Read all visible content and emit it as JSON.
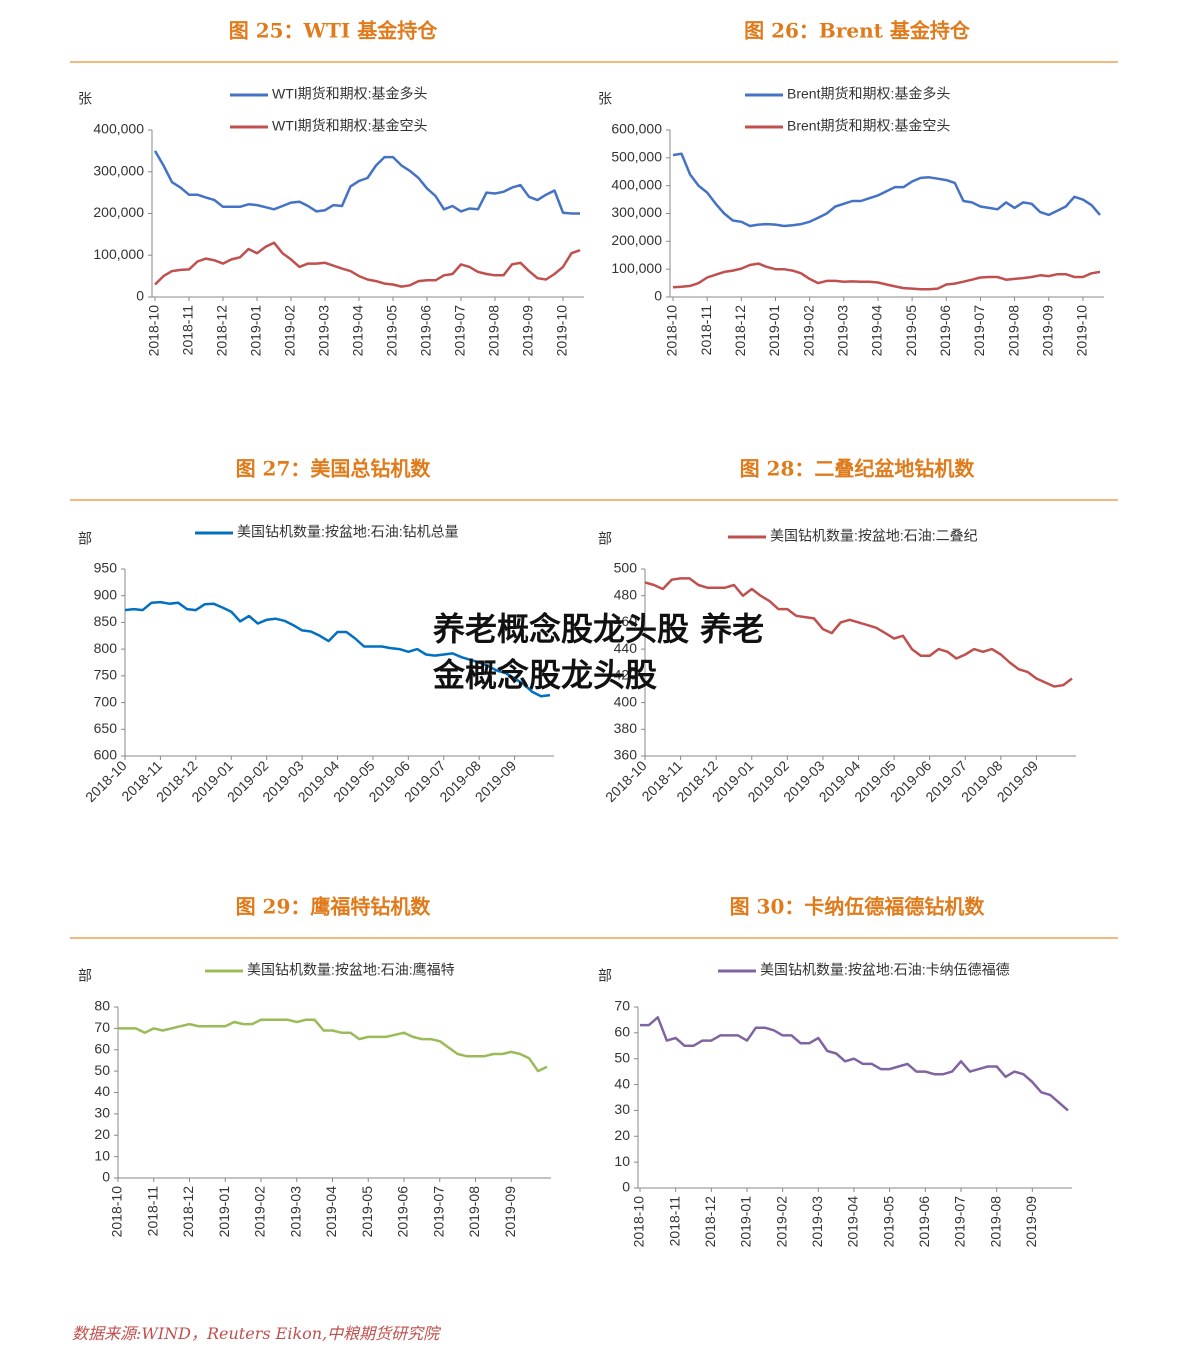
{
  "chart_data": [
    {
      "type": "line",
      "title": "图 25：WTI 基金持仓",
      "y_label": "张",
      "categories": [
        "2018-10",
        null,
        null,
        null,
        "2018-11",
        null,
        null,
        null,
        "2018-12",
        null,
        null,
        null,
        "2019-01",
        null,
        null,
        null,
        "2019-02",
        null,
        null,
        null,
        "2019-03",
        null,
        null,
        null,
        "2019-04",
        null,
        null,
        null,
        "2019-05",
        null,
        null,
        null,
        "2019-06",
        null,
        null,
        null,
        "2019-07",
        null,
        null,
        null,
        "2019-08",
        null,
        null,
        null,
        "2019-09",
        null,
        null,
        null,
        "2019-10",
        null,
        null
      ],
      "series": [
        {
          "name": "WTI期货和期权:基金多头",
          "color": "#4472c4",
          "values": [
            350000,
            315000,
            275000,
            262000,
            245000,
            245000,
            238000,
            232000,
            216000,
            216000,
            216000,
            222000,
            220000,
            215000,
            210000,
            218000,
            226000,
            228000,
            218000,
            205000,
            208000,
            220000,
            218000,
            265000,
            278000,
            285000,
            315000,
            335000,
            335000,
            315000,
            302000,
            285000,
            260000,
            242000,
            210000,
            218000,
            205000,
            212000,
            210000,
            250000,
            248000,
            252000,
            262000,
            268000,
            240000,
            232000,
            245000,
            255000,
            202000,
            200000,
            200000
          ]
        },
        {
          "name": "WTI期货和期权:基金空头",
          "color": "#c0504d",
          "values": [
            30000,
            50000,
            62000,
            65000,
            66000,
            85000,
            92000,
            88000,
            80000,
            90000,
            95000,
            115000,
            105000,
            120000,
            130000,
            105000,
            90000,
            72000,
            80000,
            80000,
            82000,
            75000,
            68000,
            62000,
            50000,
            42000,
            38000,
            32000,
            30000,
            25000,
            28000,
            38000,
            40000,
            40000,
            52000,
            55000,
            78000,
            72000,
            60000,
            55000,
            52000,
            52000,
            78000,
            82000,
            62000,
            45000,
            42000,
            55000,
            72000,
            105000,
            112000
          ]
        }
      ],
      "ylim": [
        0,
        400000
      ],
      "yticks": [
        0,
        {
          "value": 100000,
          "label": "100,000"
        },
        {
          "value": 200000,
          "label": "200,000"
        },
        {
          "value": 300000,
          "label": "300,000"
        },
        {
          "value": 400000,
          "label": "400,000"
        }
      ],
      "grid": false
    },
    {
      "type": "line",
      "title": "图 26：Brent 基金持仓",
      "y_label": "张",
      "categories": [
        "2018-10",
        null,
        null,
        null,
        "2018-11",
        null,
        null,
        null,
        "2018-12",
        null,
        null,
        null,
        "2019-01",
        null,
        null,
        null,
        "2019-02",
        null,
        null,
        null,
        "2019-03",
        null,
        null,
        null,
        "2019-04",
        null,
        null,
        null,
        "2019-05",
        null,
        null,
        null,
        "2019-06",
        null,
        null,
        null,
        "2019-07",
        null,
        null,
        null,
        "2019-08",
        null,
        null,
        null,
        "2019-09",
        null,
        null,
        null,
        "2019-10",
        null,
        null
      ],
      "series": [
        {
          "name": "Brent期货和期权:基金多头",
          "color": "#4472c4",
          "values": [
            510000,
            515000,
            440000,
            400000,
            375000,
            335000,
            300000,
            275000,
            270000,
            255000,
            260000,
            262000,
            260000,
            255000,
            258000,
            262000,
            270000,
            285000,
            300000,
            325000,
            335000,
            345000,
            345000,
            355000,
            365000,
            380000,
            395000,
            395000,
            415000,
            428000,
            430000,
            425000,
            420000,
            410000,
            345000,
            340000,
            325000,
            320000,
            315000,
            340000,
            320000,
            340000,
            335000,
            305000,
            295000,
            310000,
            325000,
            360000,
            350000,
            330000,
            295000
          ]
        },
        {
          "name": "Brent期货和期权:基金空头",
          "color": "#c0504d",
          "values": [
            35000,
            37000,
            40000,
            50000,
            70000,
            80000,
            90000,
            95000,
            102000,
            115000,
            120000,
            108000,
            100000,
            100000,
            95000,
            85000,
            65000,
            50000,
            58000,
            58000,
            55000,
            56000,
            55000,
            55000,
            52000,
            45000,
            38000,
            32000,
            30000,
            28000,
            28000,
            30000,
            45000,
            48000,
            55000,
            62000,
            70000,
            72000,
            72000,
            62000,
            65000,
            68000,
            72000,
            78000,
            75000,
            82000,
            82000,
            72000,
            72000,
            85000,
            90000
          ]
        }
      ],
      "ylim": [
        0,
        600000
      ],
      "yticks": [
        0,
        {
          "value": 100000,
          "label": "100,000"
        },
        {
          "value": 200000,
          "label": "200,000"
        },
        {
          "value": 300000,
          "label": "300,000"
        },
        {
          "value": 400000,
          "label": "400,000"
        },
        {
          "value": 500000,
          "label": "500,000"
        },
        {
          "value": 600000,
          "label": "600,000"
        }
      ],
      "grid": false
    },
    {
      "type": "line",
      "title": "图 27：美国总钻机数",
      "y_label": "部",
      "categories": [
        "2018-10",
        null,
        null,
        null,
        "2018-11",
        null,
        null,
        null,
        "2018-12",
        null,
        null,
        null,
        "2019-01",
        null,
        null,
        null,
        "2019-02",
        null,
        null,
        null,
        "2019-03",
        null,
        null,
        null,
        "2019-04",
        null,
        null,
        null,
        "2019-05",
        null,
        null,
        null,
        "2019-06",
        null,
        null,
        null,
        "2019-07",
        null,
        null,
        null,
        "2019-08",
        null,
        null,
        null,
        "2019-09",
        null,
        null,
        null,
        null
      ],
      "series": [
        {
          "name": "美国钻机数量:按盆地:石油:钻机总量",
          "color": "#0070c0",
          "values": [
            873,
            875,
            873,
            887,
            888,
            885,
            887,
            875,
            873,
            884,
            885,
            878,
            870,
            852,
            862,
            848,
            855,
            857,
            853,
            845,
            835,
            833,
            825,
            815,
            832,
            832,
            820,
            805,
            805,
            805,
            802,
            800,
            795,
            800,
            790,
            788,
            790,
            792,
            785,
            780,
            775,
            768,
            760,
            755,
            745,
            735,
            720,
            712,
            714
          ]
        }
      ],
      "ylim": [
        600,
        950
      ],
      "yticks": [
        600,
        650,
        700,
        750,
        800,
        850,
        900,
        950
      ],
      "grid": false
    },
    {
      "type": "line",
      "title": "图 28：二叠纪盆地钻机数",
      "y_label": "部",
      "categories": [
        "2018-10",
        null,
        null,
        null,
        "2018-11",
        null,
        null,
        null,
        "2018-12",
        null,
        null,
        null,
        "2019-01",
        null,
        null,
        null,
        "2019-02",
        null,
        null,
        null,
        "2019-03",
        null,
        null,
        null,
        "2019-04",
        null,
        null,
        null,
        "2019-05",
        null,
        null,
        null,
        "2019-06",
        null,
        null,
        null,
        "2019-07",
        null,
        null,
        null,
        "2019-08",
        null,
        null,
        null,
        "2019-09",
        null,
        null,
        null,
        null
      ],
      "series": [
        {
          "name": "美国钻机数量:按盆地:石油:二叠纪",
          "color": "#c0504d",
          "values": [
            490,
            488,
            485,
            492,
            493,
            493,
            488,
            486,
            486,
            486,
            488,
            480,
            485,
            480,
            476,
            470,
            470,
            465,
            464,
            463,
            455,
            452,
            460,
            462,
            460,
            458,
            456,
            452,
            448,
            450,
            440,
            435,
            435,
            440,
            438,
            433,
            436,
            440,
            438,
            440,
            436,
            430,
            425,
            423,
            418,
            415,
            412,
            413,
            418
          ]
        }
      ],
      "ylim": [
        360,
        500
      ],
      "yticks": [
        360,
        380,
        400,
        420,
        440,
        460,
        480,
        500
      ],
      "grid": false
    },
    {
      "type": "line",
      "title": "图 29：鹰福特钻机数",
      "y_label": "部",
      "categories": [
        "2018-10",
        null,
        null,
        null,
        "2018-11",
        null,
        null,
        null,
        "2018-12",
        null,
        null,
        null,
        "2019-01",
        null,
        null,
        null,
        "2019-02",
        null,
        null,
        null,
        "2019-03",
        null,
        null,
        null,
        "2019-04",
        null,
        null,
        null,
        "2019-05",
        null,
        null,
        null,
        "2019-06",
        null,
        null,
        null,
        "2019-07",
        null,
        null,
        null,
        "2019-08",
        null,
        null,
        null,
        "2019-09",
        null,
        null,
        null,
        null
      ],
      "series": [
        {
          "name": "美国钻机数量:按盆地:石油:鹰福特",
          "color": "#9bbb59",
          "values": [
            70,
            70,
            70,
            68,
            70,
            69,
            70,
            71,
            72,
            71,
            71,
            71,
            71,
            73,
            72,
            72,
            74,
            74,
            74,
            74,
            73,
            74,
            74,
            69,
            69,
            68,
            68,
            65,
            66,
            66,
            66,
            67,
            68,
            66,
            65,
            65,
            64,
            61,
            58,
            57,
            57,
            57,
            58,
            58,
            59,
            58,
            56,
            50,
            52
          ]
        }
      ],
      "ylim": [
        0,
        80
      ],
      "yticks": [
        0,
        10,
        20,
        30,
        40,
        50,
        60,
        70,
        80
      ],
      "grid": false
    },
    {
      "type": "line",
      "title": "图 30：卡纳伍德福德钻机数",
      "y_label": "部",
      "categories": [
        "2018-10",
        null,
        null,
        null,
        "2018-11",
        null,
        null,
        null,
        "2018-12",
        null,
        null,
        null,
        "2019-01",
        null,
        null,
        null,
        "2019-02",
        null,
        null,
        null,
        "2019-03",
        null,
        null,
        null,
        "2019-04",
        null,
        null,
        null,
        "2019-05",
        null,
        null,
        null,
        "2019-06",
        null,
        null,
        null,
        "2019-07",
        null,
        null,
        null,
        "2019-08",
        null,
        null,
        null,
        "2019-09",
        null,
        null,
        null,
        null
      ],
      "series": [
        {
          "name": "美国钻机数量:按盆地:石油:卡纳伍德福德",
          "color": "#8064a2",
          "values": [
            63,
            63,
            66,
            57,
            58,
            55,
            55,
            57,
            57,
            59,
            59,
            59,
            57,
            62,
            62,
            61,
            59,
            59,
            56,
            56,
            58,
            53,
            52,
            49,
            50,
            48,
            48,
            46,
            46,
            47,
            48,
            45,
            45,
            44,
            44,
            45,
            49,
            45,
            46,
            47,
            47,
            43,
            45,
            44,
            41,
            37,
            36,
            33,
            30
          ]
        }
      ],
      "ylim": [
        0,
        70
      ],
      "yticks": [
        0,
        10,
        20,
        30,
        40,
        50,
        60,
        70
      ],
      "grid": false
    }
  ],
  "overlay_text": "养老概念股龙头股 养老金概念股龙头股",
  "source": "数据来源:WIND，Reuters Eikon,中粮期货研究院"
}
